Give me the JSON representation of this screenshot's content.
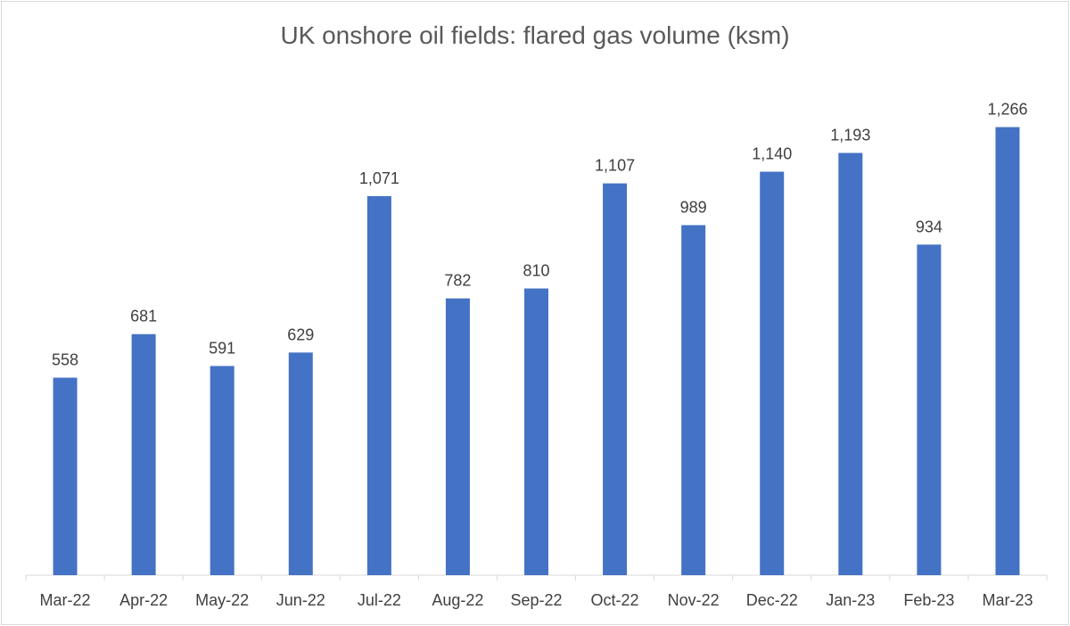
{
  "chart_data": {
    "type": "bar",
    "title": "UK onshore oil fields: flared gas volume (ksm)",
    "categories": [
      "Mar-22",
      "Apr-22",
      "May-22",
      "Jun-22",
      "Jul-22",
      "Aug-22",
      "Sep-22",
      "Oct-22",
      "Nov-22",
      "Dec-22",
      "Jan-23",
      "Feb-23",
      "Mar-23"
    ],
    "values": [
      558,
      681,
      591,
      629,
      1071,
      782,
      810,
      1107,
      989,
      1140,
      1193,
      934,
      1266
    ],
    "data_labels": [
      "558",
      "681",
      "591",
      "629",
      "1,071",
      "782",
      "810",
      "1,107",
      "989",
      "1,140",
      "1,193",
      "934",
      "1,266"
    ],
    "xlabel": "",
    "ylabel": "",
    "ylim": [
      0,
      1400
    ],
    "grid": false,
    "legend": "none",
    "bar_color": "#4472C4"
  }
}
